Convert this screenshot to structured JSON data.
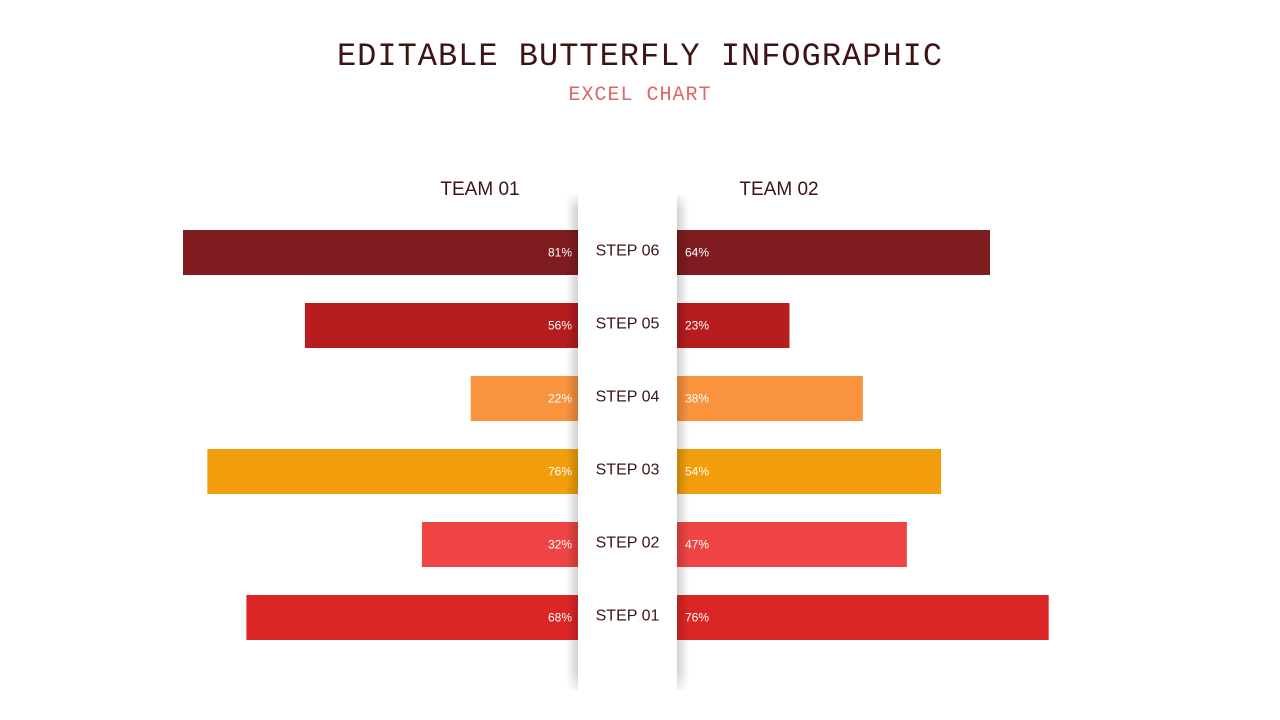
{
  "slide": {
    "title": "EDITABLE BUTTERFLY INFOGRAPHIC",
    "subtitle": "EXCEL CHART"
  },
  "chart_data": {
    "type": "bar",
    "orientation": "horizontal-butterfly",
    "categories": [
      "STEP 06",
      "STEP 05",
      "STEP 04",
      "STEP 03",
      "STEP 02",
      "STEP 01"
    ],
    "series": [
      {
        "name": "TEAM 01",
        "values": [
          81,
          56,
          22,
          76,
          32,
          68
        ],
        "labels": [
          "81%",
          "56%",
          "22%",
          "76%",
          "32%",
          "68%"
        ]
      },
      {
        "name": "TEAM 02",
        "values": [
          64,
          23,
          38,
          54,
          47,
          76
        ],
        "labels": [
          "64%",
          "23%",
          "38%",
          "54%",
          "47%",
          "76%"
        ]
      }
    ],
    "colors": [
      "#7f1c1f",
      "#b71c1f",
      "#f9933e",
      "#f29e0c",
      "#ef4444",
      "#dc2626"
    ],
    "xlim": [
      0,
      100
    ],
    "grid": false
  }
}
